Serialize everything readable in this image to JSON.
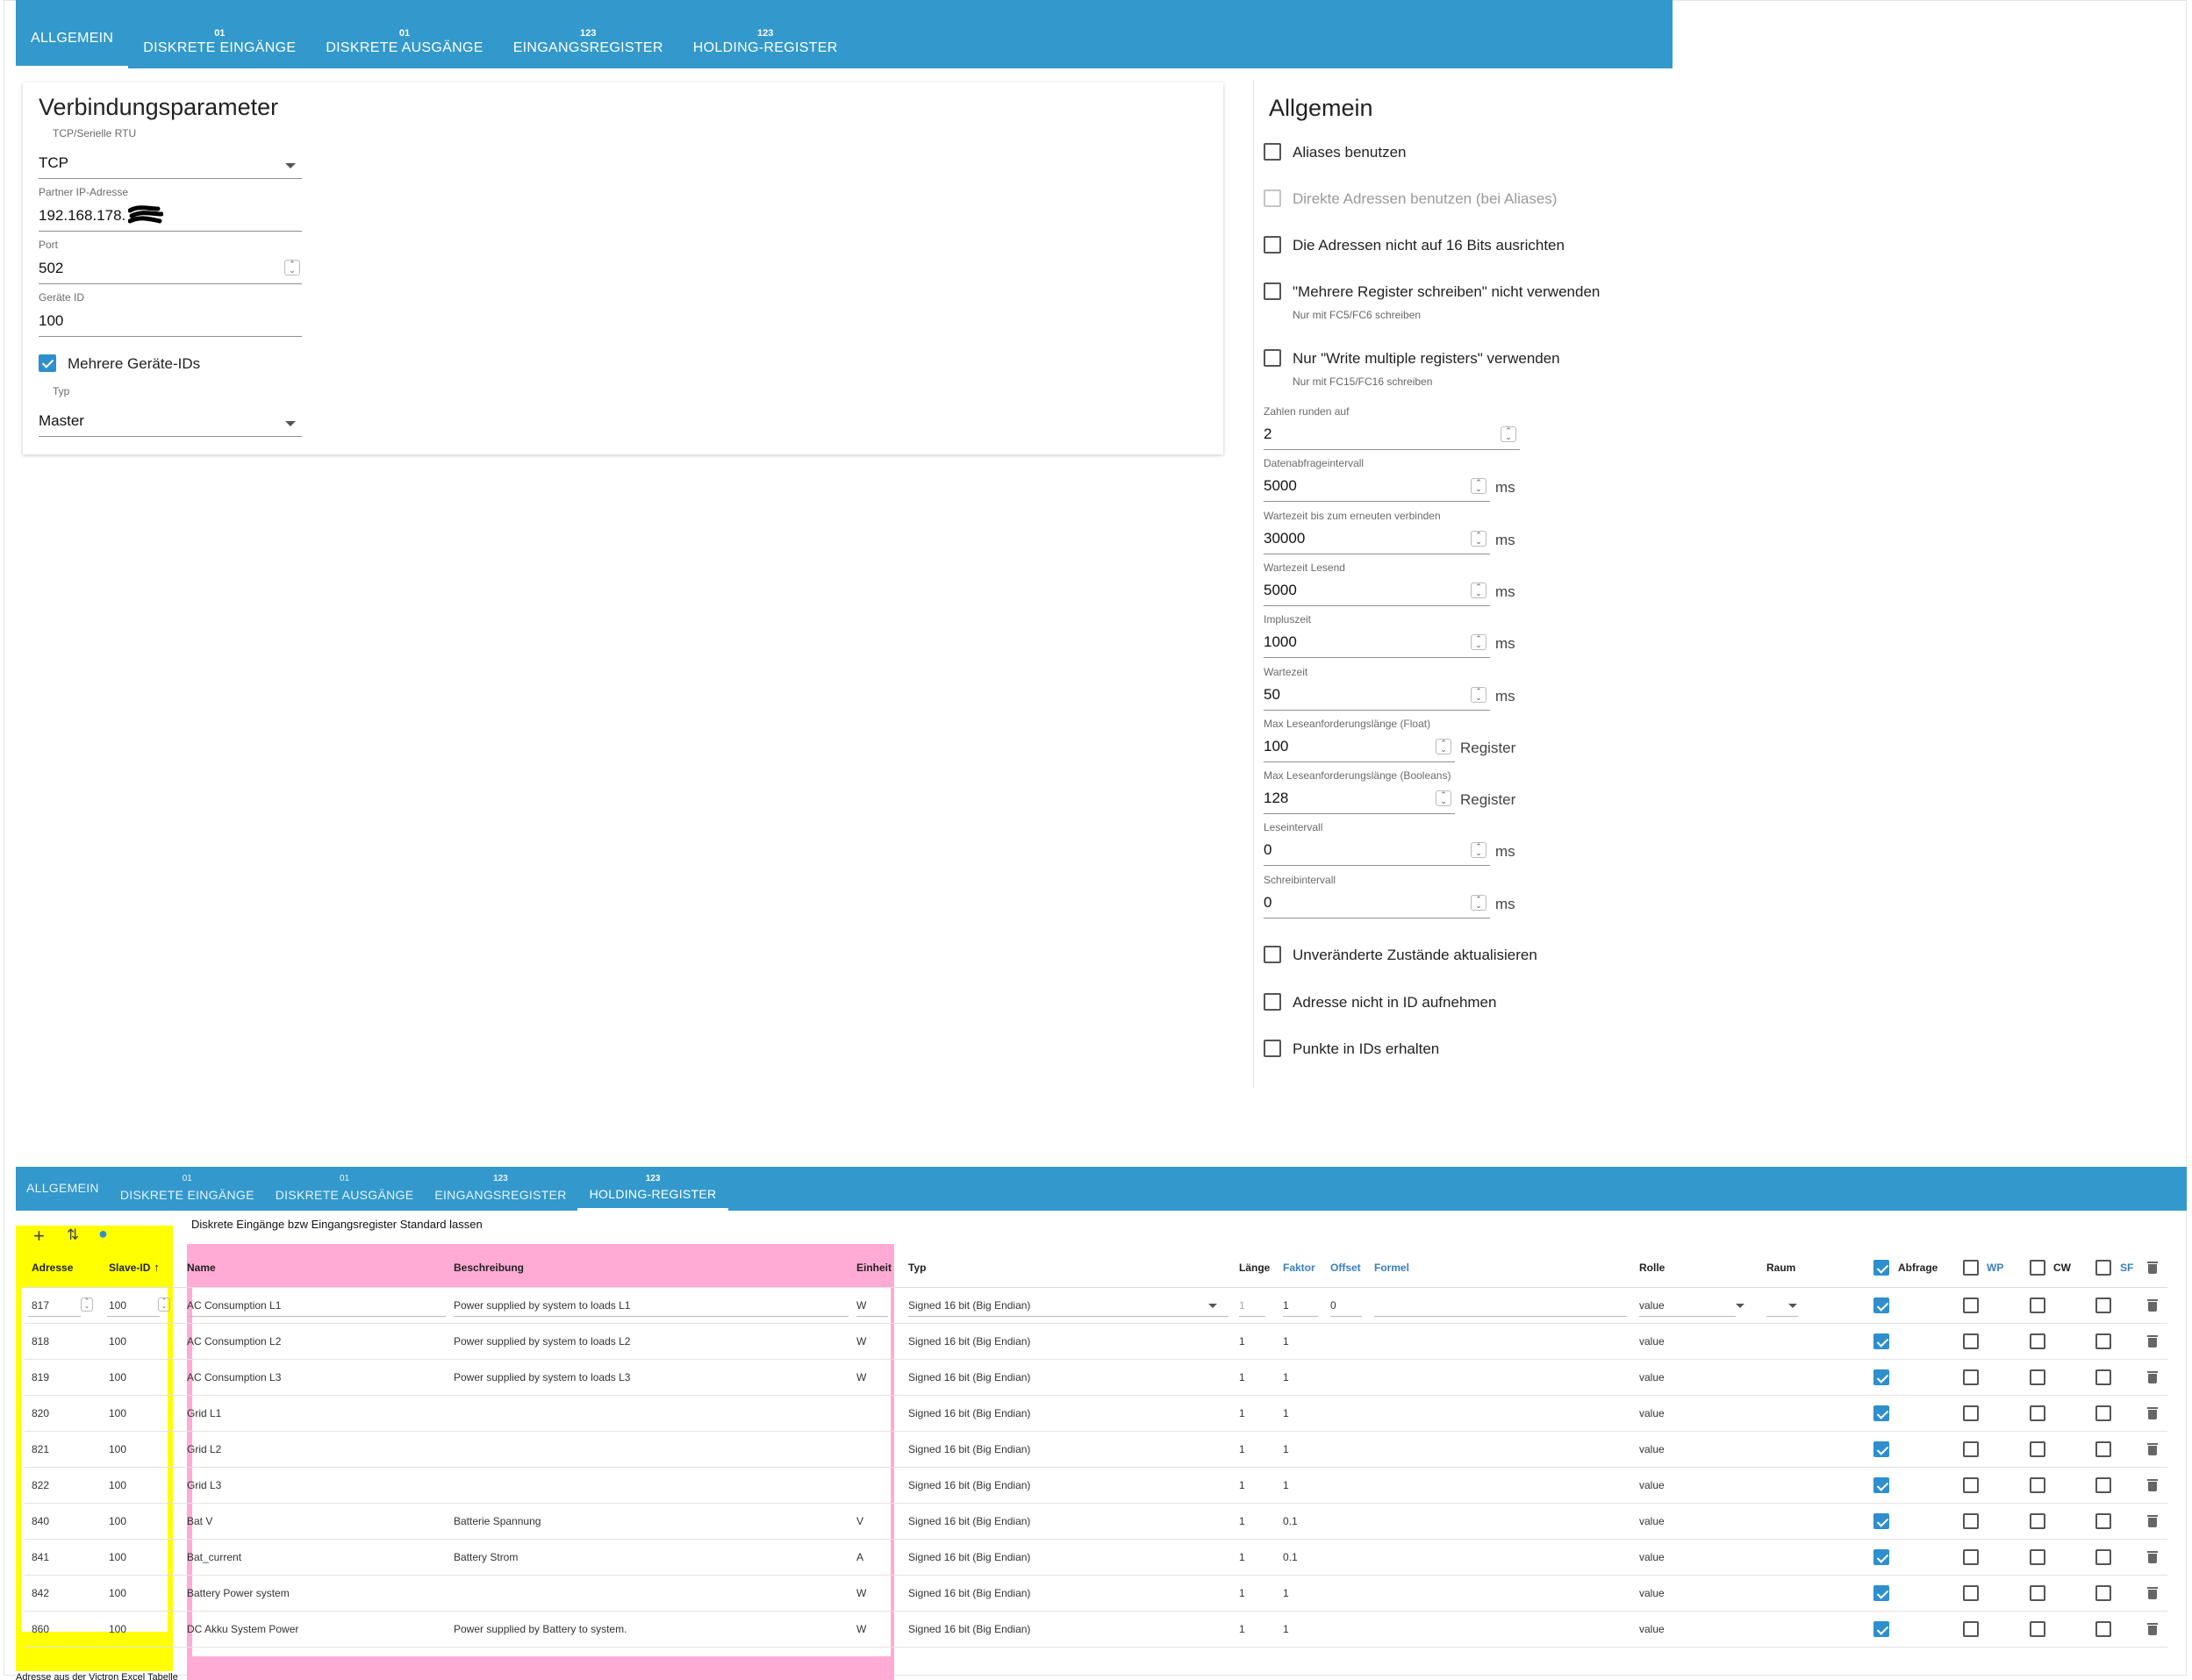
{
  "tabs": [
    {
      "label": "ALLGEMEIN",
      "num": ""
    },
    {
      "label": "DISKRETE EINGÄNGE",
      "num": "01"
    },
    {
      "label": "DISKRETE AUSGÄNGE",
      "num": "01"
    },
    {
      "label": "EINGANGSREGISTER",
      "num": "123"
    },
    {
      "label": "HOLDING-REGISTER",
      "num": "123"
    }
  ],
  "connection": {
    "title": "Verbindungsparameter",
    "mode_label": "TCP/Serielle RTU",
    "mode_value": "TCP",
    "ip_label": "Partner IP-Adresse",
    "ip_value": "192.168.178.",
    "port_label": "Port",
    "port_value": "502",
    "device_label": "Geräte ID",
    "device_value": "100",
    "multi_ids_label": "Mehrere Geräte-IDs",
    "type_label": "Typ",
    "type_value": "Master"
  },
  "general": {
    "title": "Allgemein",
    "checks": [
      {
        "label": "Aliases benutzen",
        "sub": ""
      },
      {
        "label": "Direkte Adressen benutzen (bei Aliases)",
        "sub": ""
      },
      {
        "label": "Die Adressen nicht auf 16 Bits ausrichten",
        "sub": ""
      },
      {
        "label": "\"Mehrere Register schreiben\" nicht verwenden",
        "sub": "Nur mit FC5/FC6 schreiben"
      },
      {
        "label": "Nur \"Write multiple registers\" verwenden",
        "sub": "Nur mit FC15/FC16 schreiben"
      }
    ],
    "fields": [
      {
        "label": "Zahlen runden auf",
        "value": "2",
        "unit": ""
      },
      {
        "label": "Datenabfrageintervall",
        "value": "5000",
        "unit": "ms"
      },
      {
        "label": "Wartezeit bis zum erneuten verbinden",
        "value": "30000",
        "unit": "ms"
      },
      {
        "label": "Wartezeit Lesend",
        "value": "5000",
        "unit": "ms"
      },
      {
        "label": "Impluszeit",
        "value": "1000",
        "unit": "ms"
      },
      {
        "label": "Wartezeit",
        "value": "50",
        "unit": "ms"
      },
      {
        "label": "Max Leseanforderungslänge (Float)",
        "value": "100",
        "unit": "Register"
      },
      {
        "label": "Max Leseanforderungslänge (Booleans)",
        "value": "128",
        "unit": "Register"
      },
      {
        "label": "Leseintervall",
        "value": "0",
        "unit": "ms"
      },
      {
        "label": "Schreibintervall",
        "value": "0",
        "unit": "ms"
      }
    ],
    "bottom_checks": [
      {
        "label": "Unveränderte Zustände aktualisieren"
      },
      {
        "label": "Adresse nicht in ID aufnehmen"
      },
      {
        "label": "Punkte in IDs erhalten"
      }
    ]
  },
  "note_top": "Diskrete Eingänge bzw Eingangsregister Standard lassen",
  "note_bottom": "Adresse aus der Victron Excel Tabelle",
  "table": {
    "headers": {
      "address": "Adresse",
      "slave": "Slave-ID",
      "sort_arrow": "↑",
      "name": "Name",
      "desc": "Beschreibung",
      "unit": "Einheit",
      "type": "Typ",
      "length": "Länge",
      "factor": "Faktor",
      "offset": "Offset",
      "formula": "Formel",
      "role": "Rolle",
      "room": "Raum",
      "poll": "Abfrage",
      "wp": "WP",
      "cw": "CW",
      "sf": "SF"
    },
    "rows": [
      {
        "address": "817",
        "slave": "100",
        "name": "AC Consumption L1",
        "desc": "Power supplied by system to loads L1",
        "unit": "W",
        "type": "Signed 16 bit (Big Endian)",
        "length": "1",
        "factor": "1",
        "offset": "0",
        "role": "value"
      },
      {
        "address": "818",
        "slave": "100",
        "name": "AC Consumption L2",
        "desc": "Power supplied by system to loads L2",
        "unit": "W",
        "type": "Signed 16 bit (Big Endian)",
        "length": "1",
        "factor": "1",
        "offset": "",
        "role": "value"
      },
      {
        "address": "819",
        "slave": "100",
        "name": "AC Consumption L3",
        "desc": "Power supplied by system to loads L3",
        "unit": "W",
        "type": "Signed 16 bit (Big Endian)",
        "length": "1",
        "factor": "1",
        "offset": "",
        "role": "value"
      },
      {
        "address": "820",
        "slave": "100",
        "name": "Grid L1",
        "desc": "",
        "unit": "",
        "type": "Signed 16 bit (Big Endian)",
        "length": "1",
        "factor": "1",
        "offset": "",
        "role": "value"
      },
      {
        "address": "821",
        "slave": "100",
        "name": "Grid L2",
        "desc": "",
        "unit": "",
        "type": "Signed 16 bit (Big Endian)",
        "length": "1",
        "factor": "1",
        "offset": "",
        "role": "value"
      },
      {
        "address": "822",
        "slave": "100",
        "name": "Grid L3",
        "desc": "",
        "unit": "",
        "type": "Signed 16 bit (Big Endian)",
        "length": "1",
        "factor": "1",
        "offset": "",
        "role": "value"
      },
      {
        "address": "840",
        "slave": "100",
        "name": "Bat V",
        "desc": "Batterie Spannung",
        "unit": "V",
        "type": "Signed 16 bit (Big Endian)",
        "length": "1",
        "factor": "0.1",
        "offset": "",
        "role": "value"
      },
      {
        "address": "841",
        "slave": "100",
        "name": "Bat_current",
        "desc": "Battery Strom",
        "unit": "A",
        "type": "Signed 16 bit (Big Endian)",
        "length": "1",
        "factor": "0.1",
        "offset": "",
        "role": "value"
      },
      {
        "address": "842",
        "slave": "100",
        "name": "Battery Power system",
        "desc": "",
        "unit": "W",
        "type": "Signed 16 bit (Big Endian)",
        "length": "1",
        "factor": "1",
        "offset": "",
        "role": "value"
      },
      {
        "address": "860",
        "slave": "100",
        "name": "DC Akku System Power",
        "desc": "Power supplied by Battery to system.",
        "unit": "W",
        "type": "Signed 16 bit (Big Endian)",
        "length": "1",
        "factor": "1",
        "offset": "",
        "role": "value"
      }
    ]
  },
  "colors": {
    "tab_bar": "#3399cc",
    "checkbox_on": "#2f8fce",
    "highlight_yellow": "#ffff00",
    "highlight_pink": "#ffabd6"
  }
}
